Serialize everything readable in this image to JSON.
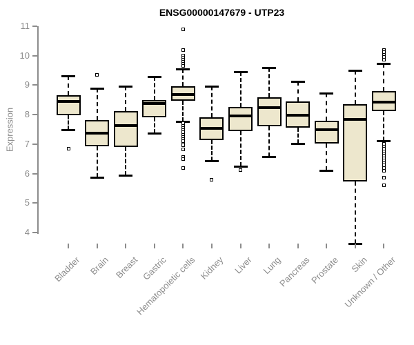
{
  "chart_data": {
    "type": "boxplot",
    "title": "ENSG00000147679 - UTP23",
    "ylabel": "Expression",
    "xlabel": "",
    "ylim": [
      4,
      11
    ],
    "yticks": [
      4,
      5,
      6,
      7,
      8,
      9,
      10,
      11
    ],
    "grid": false,
    "legend": "none",
    "box_fill": "#EDE7CD",
    "box_border": "#000000",
    "axis_color": "#8C8C8C",
    "categories": [
      "Bladder",
      "Brain",
      "Breast",
      "Gastric",
      "Hematopoietic cells",
      "Kidney",
      "Liver",
      "Lung",
      "Pancreas",
      "Prostate",
      "Skin",
      "Unknown / Other"
    ],
    "series": [
      {
        "name": "Bladder",
        "whisker_low": 7.48,
        "q1": 7.99,
        "median": 8.44,
        "q3": 8.67,
        "whisker_high": 9.32,
        "outliers": [
          6.85
        ]
      },
      {
        "name": "Brain",
        "whisker_low": 5.88,
        "q1": 6.92,
        "median": 7.37,
        "q3": 7.81,
        "whisker_high": 8.89,
        "outliers": [
          9.35
        ]
      },
      {
        "name": "Breast",
        "whisker_low": 5.95,
        "q1": 6.9,
        "median": 7.63,
        "q3": 8.11,
        "whisker_high": 8.97,
        "outliers": []
      },
      {
        "name": "Gastric",
        "whisker_low": 7.37,
        "q1": 7.91,
        "median": 8.37,
        "q3": 8.49,
        "whisker_high": 9.29,
        "outliers": []
      },
      {
        "name": "Hematopoietic cells",
        "whisker_low": 7.76,
        "q1": 8.46,
        "median": 8.69,
        "q3": 8.97,
        "whisker_high": 9.56,
        "outliers": [
          10.9,
          10.2,
          10.0,
          9.93,
          9.86,
          9.79,
          9.72,
          9.65,
          7.7,
          7.62,
          7.55,
          7.47,
          7.4,
          7.32,
          7.25,
          7.17,
          7.1,
          7.02,
          6.95,
          6.82,
          6.57,
          6.5,
          6.2
        ]
      },
      {
        "name": "Kidney",
        "whisker_low": 6.43,
        "q1": 7.13,
        "median": 7.53,
        "q3": 7.91,
        "whisker_high": 8.97,
        "outliers": [
          5.8
        ]
      },
      {
        "name": "Liver",
        "whisker_low": 6.25,
        "q1": 7.44,
        "median": 7.95,
        "q3": 8.27,
        "whisker_high": 9.45,
        "outliers": [
          6.12
        ]
      },
      {
        "name": "Lung",
        "whisker_low": 6.58,
        "q1": 7.6,
        "median": 8.23,
        "q3": 8.58,
        "whisker_high": 9.6,
        "outliers": []
      },
      {
        "name": "Pancreas",
        "whisker_low": 7.02,
        "q1": 7.56,
        "median": 7.97,
        "q3": 8.44,
        "whisker_high": 9.13,
        "outliers": []
      },
      {
        "name": "Prostate",
        "whisker_low": 6.1,
        "q1": 7.02,
        "median": 7.49,
        "q3": 7.8,
        "whisker_high": 8.73,
        "outliers": []
      },
      {
        "name": "Skin",
        "whisker_low": 3.63,
        "q1": 5.73,
        "median": 7.84,
        "q3": 8.36,
        "whisker_high": 9.5,
        "outliers": []
      },
      {
        "name": "Unknown / Other",
        "whisker_low": 7.12,
        "q1": 8.11,
        "median": 8.42,
        "q3": 8.79,
        "whisker_high": 9.73,
        "outliers": [
          10.2,
          10.12,
          10.03,
          9.95,
          9.87,
          7.0,
          6.92,
          6.84,
          6.76,
          6.68,
          6.6,
          6.52,
          6.44,
          6.36,
          6.28,
          6.2,
          6.1,
          5.86,
          5.6
        ]
      }
    ]
  }
}
